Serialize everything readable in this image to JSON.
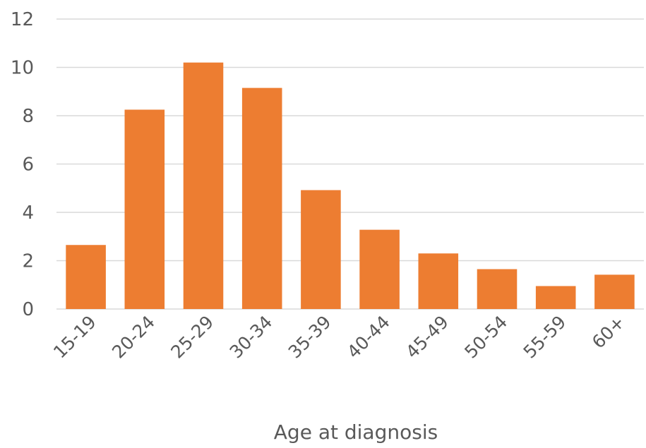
{
  "chart_data": {
    "type": "bar",
    "title": "",
    "xlabel": "Age at diagnosis",
    "ylabel": "",
    "categories": [
      "15-19",
      "20-24",
      "25-29",
      "30-34",
      "35-39",
      "40-44",
      "45-49",
      "50-54",
      "55-59",
      "60+"
    ],
    "values": [
      2.65,
      8.25,
      10.2,
      9.15,
      4.92,
      3.28,
      2.3,
      1.65,
      0.95,
      1.42
    ],
    "ylim": [
      0,
      12
    ],
    "yticks": [
      0,
      2,
      4,
      6,
      8,
      10,
      12
    ],
    "grid": true,
    "legend": "none",
    "colors": {
      "bar": "#ED7D31",
      "grid": "#D9D9D9",
      "text": "#595959"
    }
  }
}
